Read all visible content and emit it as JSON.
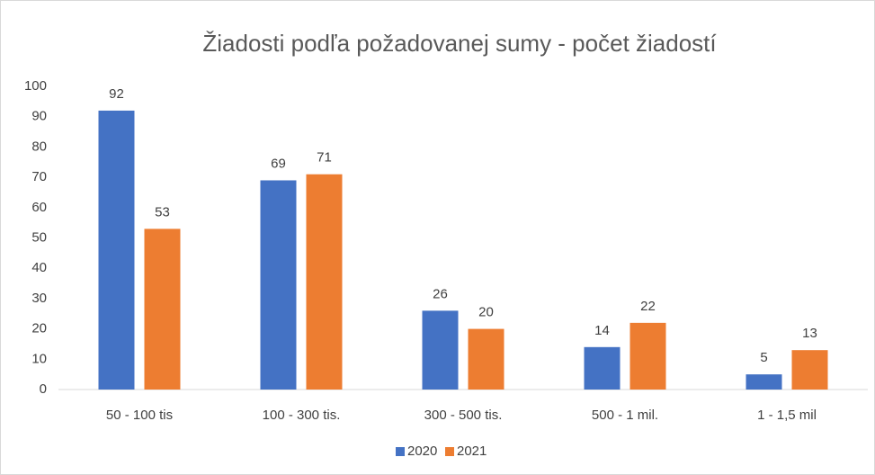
{
  "chart_data": {
    "type": "bar",
    "title": "Žiadosti podľa požadovanej sumy - počet žiadostí",
    "categories": [
      "50 - 100 tis",
      "100 - 300 tis.",
      "300 - 500 tis.",
      "500 - 1 mil.",
      "1 - 1,5 mil"
    ],
    "series": [
      {
        "name": "2020",
        "color": "#4472c4",
        "values": [
          92,
          69,
          26,
          14,
          5
        ]
      },
      {
        "name": "2021",
        "color": "#ed7d31",
        "values": [
          53,
          71,
          20,
          22,
          13
        ]
      }
    ],
    "ylim": [
      0,
      100
    ],
    "yticks": [
      0,
      10,
      20,
      30,
      40,
      50,
      60,
      70,
      80,
      90,
      100
    ],
    "grid": false,
    "legend": "bottom"
  }
}
